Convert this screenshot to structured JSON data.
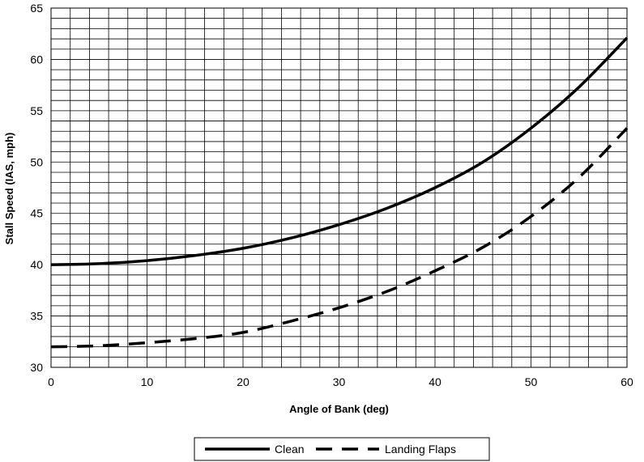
{
  "chart_data": {
    "type": "line",
    "xlabel": "Angle of Bank (deg)",
    "ylabel": "Stall Speed (IAS, mph)",
    "xlim": [
      0,
      60
    ],
    "ylim": [
      30,
      65
    ],
    "x_ticks": [
      "0",
      "10",
      "20",
      "30",
      "40",
      "50",
      "60"
    ],
    "y_ticks": [
      "30",
      "35",
      "40",
      "45",
      "50",
      "55",
      "60",
      "65"
    ],
    "grid": true,
    "legend_position": "bottom-center",
    "series": [
      {
        "name": "Clean",
        "style": "solid",
        "color": "#000000",
        "x": [
          0,
          5,
          10,
          15,
          20,
          25,
          30,
          35,
          40,
          45,
          50,
          55,
          60
        ],
        "y": [
          40.0,
          40.1,
          40.4,
          40.9,
          41.6,
          42.6,
          43.9,
          45.5,
          47.5,
          50.0,
          53.3,
          57.3,
          62.1
        ]
      },
      {
        "name": "Landing Flaps",
        "style": "dashed",
        "color": "#000000",
        "x": [
          0,
          5,
          10,
          15,
          20,
          25,
          30,
          35,
          40,
          45,
          50,
          55,
          60
        ],
        "y": [
          32.0,
          32.1,
          32.4,
          32.8,
          33.4,
          34.5,
          35.8,
          37.4,
          39.4,
          41.7,
          44.7,
          48.5,
          53.3
        ]
      }
    ]
  }
}
